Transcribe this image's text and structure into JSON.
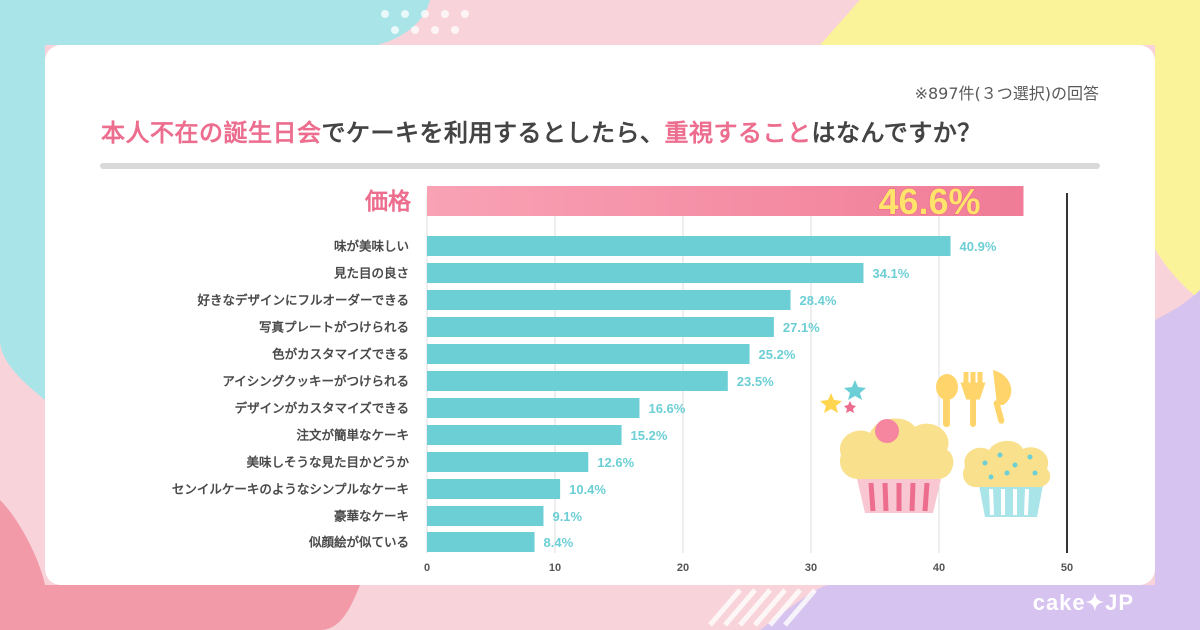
{
  "header": {
    "note": "※897件(３つ選択)の回答",
    "title_highlight_1": "本人不在の誕生日会",
    "title_mid": "でケーキを利用するとしたら、",
    "title_highlight_2": "重視すること",
    "title_end": "はなんですか？"
  },
  "brand": {
    "logo_text": "cake✦JP"
  },
  "colors": {
    "accent_pink": "#ec6d8e",
    "bar_teal": "#6ccfd6",
    "highlight_yellow": "#ffe36b"
  },
  "chart_data": {
    "type": "bar",
    "orientation": "horizontal",
    "title": "本人不在の誕生日会でケーキを利用するとしたら、重視することはなんですか？",
    "xlim": [
      0,
      50
    ],
    "x_ticks": [
      0,
      10,
      20,
      30,
      40,
      50
    ],
    "grid": true,
    "unit": "%",
    "categories": [
      "価格",
      "味が美味しい",
      "見た目の良さ",
      "好きなデザインにフルオーダーできる",
      "写真プレートがつけられる",
      "色がカスタマイズできる",
      "アイシングクッキーがつけられる",
      "デザインがカスタマイズできる",
      "注文が簡単なケーキ",
      "美味しそうな見た目かどうか",
      "センイルケーキのようなシンプルなケーキ",
      "豪華なケーキ",
      "似顔絵が似ている"
    ],
    "values": [
      46.6,
      40.9,
      34.1,
      28.4,
      27.1,
      25.2,
      23.5,
      16.6,
      15.2,
      12.6,
      10.4,
      9.1,
      8.4
    ],
    "value_labels": [
      "46.6%",
      "40.9%",
      "34.1%",
      "28.4%",
      "27.1%",
      "25.2%",
      "23.5%",
      "16.6%",
      "15.2%",
      "12.6%",
      "10.4%",
      "9.1%",
      "8.4%"
    ],
    "highlight_index": 0
  }
}
